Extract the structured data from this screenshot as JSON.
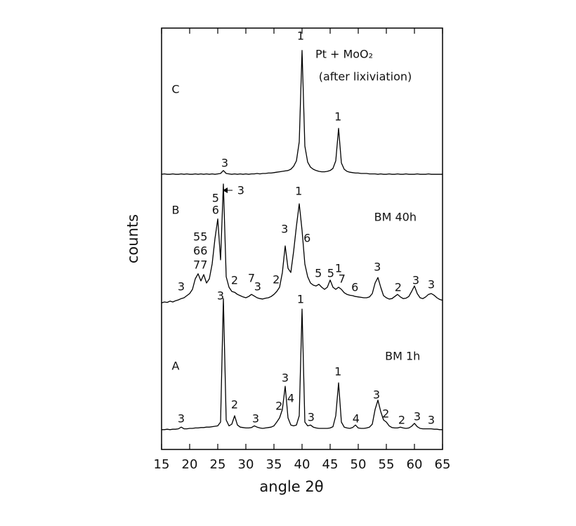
{
  "chart_data": {
    "type": "line",
    "xlabel": "angle 2θ",
    "ylabel": "counts",
    "xlim": [
      15,
      65
    ],
    "xticks": [
      15,
      20,
      25,
      30,
      35,
      40,
      45,
      50,
      55,
      60,
      65
    ],
    "ylim": [
      0,
      100
    ],
    "x": [
      15,
      15.5,
      16,
      16.5,
      17,
      17.5,
      18,
      18.5,
      19,
      19.5,
      20,
      20.5,
      21,
      21.5,
      22,
      22.5,
      23,
      23.5,
      24,
      24.5,
      25,
      25.5,
      26,
      26.5,
      27,
      27.5,
      28,
      28.5,
      29,
      29.5,
      30,
      30.5,
      31,
      31.5,
      32,
      32.5,
      33,
      33.5,
      34,
      34.5,
      35,
      35.5,
      36,
      36.5,
      37,
      37.5,
      38,
      38.5,
      39,
      39.5,
      40,
      40.5,
      41,
      41.5,
      42,
      42.5,
      43,
      43.5,
      44,
      44.5,
      45,
      45.5,
      46,
      46.5,
      47,
      47.5,
      48,
      48.5,
      49,
      49.5,
      50,
      50.5,
      51,
      51.5,
      52,
      52.5,
      53,
      53.5,
      54,
      54.5,
      55,
      55.5,
      56,
      56.5,
      57,
      57.5,
      58,
      58.5,
      59,
      59.5,
      60,
      60.5,
      61,
      61.5,
      62,
      62.5,
      63,
      63.5,
      64,
      64.5,
      65
    ],
    "series": [
      {
        "name": "C",
        "color": "#000000",
        "values": [
          65.3,
          65.4,
          65.3,
          65.3,
          65.4,
          65.3,
          65.3,
          65.4,
          65.3,
          65.4,
          65.3,
          65.3,
          65.4,
          65.3,
          65.4,
          65.3,
          65.4,
          65.3,
          65.4,
          65.3,
          65.4,
          65.5,
          66.2,
          65.5,
          65.4,
          65.3,
          65.4,
          65.3,
          65.4,
          65.3,
          65.4,
          65.3,
          65.4,
          65.4,
          65.5,
          65.4,
          65.5,
          65.5,
          65.6,
          65.6,
          65.7,
          65.8,
          65.9,
          66.0,
          66.1,
          66.2,
          66.5,
          67.2,
          68.5,
          73,
          94.7,
          72,
          68.2,
          67,
          66.5,
          66.2,
          66.0,
          65.9,
          65.9,
          66,
          66.2,
          66.7,
          68.5,
          76.2,
          68,
          66.5,
          66.0,
          65.8,
          65.7,
          65.6,
          65.6,
          65.5,
          65.5,
          65.5,
          65.4,
          65.4,
          65.4,
          65.3,
          65.4,
          65.3,
          65.3,
          65.4,
          65.3,
          65.3,
          65.4,
          65.3,
          65.3,
          65.4,
          65.3,
          65.3,
          65.3,
          65.4,
          65.3,
          65.3,
          65.3,
          65.4,
          65.3,
          65.3,
          65.3,
          65.3,
          65.3
        ]
      },
      {
        "name": "B",
        "color": "#000000",
        "values": [
          34.8,
          35.0,
          34.9,
          35.2,
          35.0,
          35.3,
          35.5,
          35.8,
          36.0,
          36.5,
          37.0,
          38.0,
          40.5,
          41.7,
          40.0,
          41.5,
          39.5,
          40.5,
          44,
          50,
          54.7,
          45,
          63,
          41,
          38.5,
          37.5,
          37.3,
          36.8,
          36.5,
          36.2,
          36.0,
          36.3,
          36.8,
          36.4,
          36.0,
          35.8,
          35.7,
          35.9,
          36.0,
          36.3,
          36.8,
          37.5,
          38.5,
          42,
          48.3,
          43,
          42,
          47,
          53,
          58.3,
          52,
          44,
          41,
          39.5,
          39.0,
          38.8,
          39.2,
          38.5,
          38.0,
          38.5,
          40.2,
          38.5,
          38.0,
          38.5,
          38.0,
          37.2,
          36.8,
          36.6,
          36.5,
          36.3,
          36.2,
          36.1,
          36.0,
          36.0,
          36.2,
          37.0,
          39.5,
          40.8,
          38.5,
          36.5,
          36.0,
          35.7,
          35.8,
          36.3,
          36.8,
          36.2,
          35.8,
          35.9,
          36.3,
          37.5,
          38.8,
          37.0,
          36.0,
          35.8,
          36.2,
          36.8,
          37.0,
          36.6,
          36.0,
          35.6,
          35.4
        ]
      },
      {
        "name": "A",
        "color": "#000000",
        "values": [
          4.7,
          4.7,
          4.8,
          4.7,
          4.8,
          4.8,
          4.9,
          5.3,
          4.9,
          4.9,
          5.0,
          5.0,
          5.1,
          5.1,
          5.2,
          5.2,
          5.3,
          5.3,
          5.4,
          5.5,
          5.6,
          6.5,
          35.8,
          7.0,
          5.6,
          6.0,
          8.0,
          5.8,
          5.3,
          5.2,
          5.1,
          5.1,
          5.2,
          5.6,
          5.3,
          5.1,
          5.0,
          5.1,
          5.2,
          5.3,
          5.6,
          6.5,
          7.5,
          9.5,
          15,
          7.5,
          5.8,
          5.6,
          5.8,
          8,
          33.3,
          6.5,
          5.6,
          5.8,
          5.3,
          5.1,
          5.0,
          5.0,
          5.0,
          5.0,
          5.1,
          5.4,
          8,
          15.8,
          6.5,
          5.3,
          5.1,
          5.0,
          5.2,
          5.8,
          5.1,
          5.0,
          5.0,
          5.1,
          5.3,
          6.0,
          9.5,
          11.7,
          9.0,
          7.0,
          6.5,
          5.6,
          5.2,
          5.1,
          5.1,
          5.3,
          5.1,
          5.0,
          5.1,
          5.5,
          6.2,
          5.4,
          5.0,
          4.9,
          4.9,
          4.9,
          4.9,
          4.8,
          4.8,
          4.7,
          4.7
        ]
      }
    ],
    "annotations": [
      {
        "text": "C",
        "x": 17.5,
        "y": 85.3
      },
      {
        "text": "1",
        "x": 39.75,
        "y": 98
      },
      {
        "text": "Pt + MoO₂",
        "x": 47.5,
        "y": 93.7
      },
      {
        "text": "(after lixiviation)",
        "x": 51.25,
        "y": 88.3
      },
      {
        "text": "1",
        "x": 46.4,
        "y": 78.8
      },
      {
        "text": "3",
        "x": 26.25,
        "y": 67.8
      },
      {
        "text": "B",
        "x": 17.5,
        "y": 56.7
      },
      {
        "text": "BM 40h",
        "x": 56.6,
        "y": 55
      },
      {
        "text": "5",
        "x": 24.6,
        "y": 59.5
      },
      {
        "text": "6",
        "x": 24.6,
        "y": 56.7
      },
      {
        "text": "3",
        "x": 29.1,
        "y": 61.3
      },
      {
        "text": "55",
        "x": 21.9,
        "y": 50.3
      },
      {
        "text": "66",
        "x": 21.9,
        "y": 47
      },
      {
        "text": "77",
        "x": 21.9,
        "y": 43.7
      },
      {
        "text": "3",
        "x": 18.5,
        "y": 38.5
      },
      {
        "text": "2",
        "x": 28,
        "y": 40
      },
      {
        "text": "7",
        "x": 31,
        "y": 40.5
      },
      {
        "text": "3",
        "x": 32.1,
        "y": 38.5
      },
      {
        "text": "2",
        "x": 35.4,
        "y": 40.2
      },
      {
        "text": "3",
        "x": 36.9,
        "y": 52.2
      },
      {
        "text": "1",
        "x": 39.4,
        "y": 61.2
      },
      {
        "text": "6",
        "x": 40.9,
        "y": 50
      },
      {
        "text": "5",
        "x": 42.9,
        "y": 41.7
      },
      {
        "text": "5",
        "x": 45.1,
        "y": 41.7
      },
      {
        "text": "1",
        "x": 46.5,
        "y": 42.8
      },
      {
        "text": "7",
        "x": 47.1,
        "y": 40.3
      },
      {
        "text": "6",
        "x": 49.4,
        "y": 38.3
      },
      {
        "text": "3",
        "x": 53.4,
        "y": 43.2
      },
      {
        "text": "2",
        "x": 57.1,
        "y": 38.3
      },
      {
        "text": "3",
        "x": 60.25,
        "y": 40
      },
      {
        "text": "3",
        "x": 63,
        "y": 39
      },
      {
        "text": "A",
        "x": 17.5,
        "y": 19.7
      },
      {
        "text": "BM 1h",
        "x": 57.9,
        "y": 22
      },
      {
        "text": "3",
        "x": 25.5,
        "y": 36.3
      },
      {
        "text": "1",
        "x": 39.75,
        "y": 35.5
      },
      {
        "text": "3",
        "x": 18.5,
        "y": 7.2
      },
      {
        "text": "2",
        "x": 28,
        "y": 10.5
      },
      {
        "text": "3",
        "x": 31.75,
        "y": 7.2
      },
      {
        "text": "2",
        "x": 35.9,
        "y": 10.2
      },
      {
        "text": "3",
        "x": 37,
        "y": 16.8
      },
      {
        "text": "4",
        "x": 38,
        "y": 12
      },
      {
        "text": "3",
        "x": 41.6,
        "y": 7.5
      },
      {
        "text": "1",
        "x": 46.4,
        "y": 18.3
      },
      {
        "text": "4",
        "x": 49.6,
        "y": 7.2
      },
      {
        "text": "3",
        "x": 53.25,
        "y": 12.8
      },
      {
        "text": "2",
        "x": 54.9,
        "y": 8.3
      },
      {
        "text": "2",
        "x": 57.75,
        "y": 6.8
      },
      {
        "text": "3",
        "x": 60.5,
        "y": 7.7
      },
      {
        "text": "3",
        "x": 63,
        "y": 6.8
      }
    ]
  }
}
